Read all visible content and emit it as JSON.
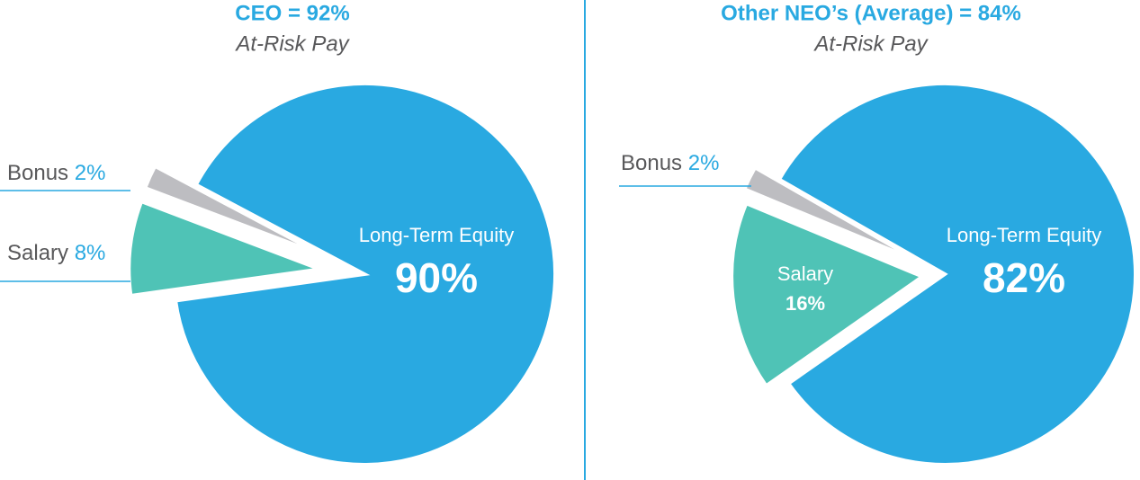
{
  "chart_data": [
    {
      "type": "pie",
      "title": "CEO = 92%",
      "subtitle": "At-Risk Pay",
      "categories": [
        "Long-Term Equity",
        "Salary",
        "Bonus"
      ],
      "values": [
        90,
        8,
        2
      ],
      "value_labels": [
        "90%",
        "8%",
        "2%"
      ],
      "colors": [
        "#29a9e1",
        "#4fc3b6",
        "#bdbdc1"
      ]
    },
    {
      "type": "pie",
      "title": "Other NEO’s (Average) = 84%",
      "subtitle": "At-Risk Pay",
      "categories": [
        "Long-Term Equity",
        "Salary",
        "Bonus"
      ],
      "values": [
        82,
        16,
        2
      ],
      "value_labels": [
        "82%",
        "16%",
        "2%"
      ],
      "colors": [
        "#29a9e1",
        "#4fc3b6",
        "#bdbdc1"
      ]
    }
  ]
}
